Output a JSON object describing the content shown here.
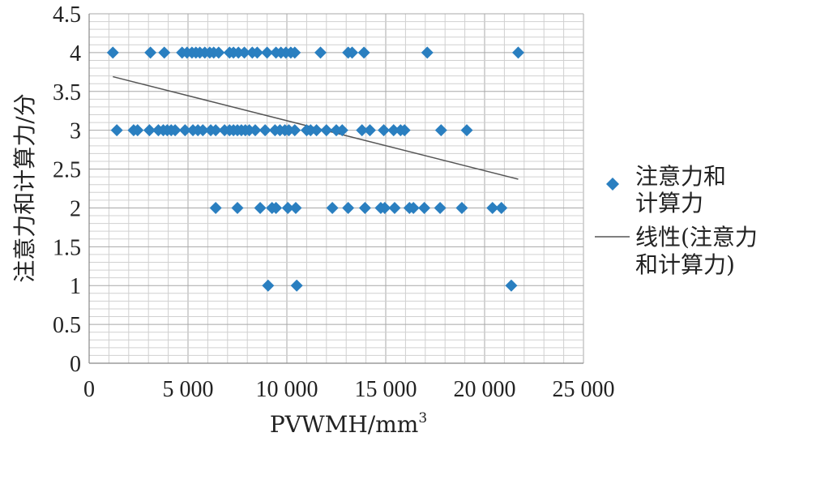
{
  "chart_data": {
    "type": "scatter",
    "xlabel": "PVWMH/mm",
    "xlabel_sup": "3",
    "ylabel": "注意力和计算力/分",
    "xlim": [
      0,
      25000
    ],
    "ylim": [
      0,
      4.5
    ],
    "x_ticks": [
      0,
      5000,
      10000,
      15000,
      20000,
      25000
    ],
    "x_tick_labels": [
      "0",
      "5 000",
      "10 000",
      "15 000",
      "20 000",
      "25 000"
    ],
    "y_ticks": [
      0,
      0.5,
      1,
      1.5,
      2,
      2.5,
      3,
      3.5,
      4,
      4.5
    ],
    "y_tick_labels": [
      "0",
      "0.5",
      "1",
      "1.5",
      "2",
      "2.5",
      "3",
      "3.5",
      "4",
      "4.5"
    ],
    "grid": true,
    "legend_position": "right",
    "series": [
      {
        "name": "注意力和计算力",
        "legend_lines": [
          "注意力和",
          "计算力"
        ],
        "marker": "diamond",
        "color": "#2a7fc0",
        "points": [
          [
            1200,
            4
          ],
          [
            3100,
            4
          ],
          [
            3800,
            4
          ],
          [
            4700,
            4
          ],
          [
            4950,
            4
          ],
          [
            5200,
            4
          ],
          [
            5400,
            4
          ],
          [
            5600,
            4
          ],
          [
            5850,
            4
          ],
          [
            6100,
            4
          ],
          [
            6300,
            4
          ],
          [
            6550,
            4
          ],
          [
            7100,
            4
          ],
          [
            7300,
            4
          ],
          [
            7550,
            4
          ],
          [
            7850,
            4
          ],
          [
            8250,
            4
          ],
          [
            8500,
            4
          ],
          [
            9000,
            4
          ],
          [
            9450,
            4
          ],
          [
            9700,
            4
          ],
          [
            9950,
            4
          ],
          [
            10200,
            4
          ],
          [
            10400,
            4
          ],
          [
            11700,
            4
          ],
          [
            13100,
            4
          ],
          [
            13300,
            4
          ],
          [
            13900,
            4
          ],
          [
            17100,
            4
          ],
          [
            21700,
            4
          ],
          [
            1400,
            3
          ],
          [
            2250,
            3
          ],
          [
            2450,
            3
          ],
          [
            3050,
            3
          ],
          [
            3500,
            3
          ],
          [
            3750,
            3
          ],
          [
            3950,
            3
          ],
          [
            4150,
            3
          ],
          [
            4350,
            3
          ],
          [
            4850,
            3
          ],
          [
            5250,
            3
          ],
          [
            5500,
            3
          ],
          [
            5750,
            3
          ],
          [
            6150,
            3
          ],
          [
            6400,
            3
          ],
          [
            6850,
            3
          ],
          [
            7100,
            3
          ],
          [
            7300,
            3
          ],
          [
            7500,
            3
          ],
          [
            7700,
            3
          ],
          [
            7900,
            3
          ],
          [
            8100,
            3
          ],
          [
            8400,
            3
          ],
          [
            8900,
            3
          ],
          [
            9400,
            3
          ],
          [
            9650,
            3
          ],
          [
            9900,
            3
          ],
          [
            10100,
            3
          ],
          [
            10400,
            3
          ],
          [
            11000,
            3
          ],
          [
            11200,
            3
          ],
          [
            11500,
            3
          ],
          [
            12000,
            3
          ],
          [
            12500,
            3
          ],
          [
            12800,
            3
          ],
          [
            13800,
            3
          ],
          [
            14200,
            3
          ],
          [
            14900,
            3
          ],
          [
            15400,
            3
          ],
          [
            15750,
            3
          ],
          [
            15950,
            3
          ],
          [
            17800,
            3
          ],
          [
            19100,
            3
          ],
          [
            6400,
            2
          ],
          [
            7500,
            2
          ],
          [
            8650,
            2
          ],
          [
            9250,
            2
          ],
          [
            9450,
            2
          ],
          [
            10050,
            2
          ],
          [
            10450,
            2
          ],
          [
            12300,
            2
          ],
          [
            13100,
            2
          ],
          [
            13950,
            2
          ],
          [
            14750,
            2
          ],
          [
            14950,
            2
          ],
          [
            15450,
            2
          ],
          [
            16200,
            2
          ],
          [
            16400,
            2
          ],
          [
            16950,
            2
          ],
          [
            17750,
            2
          ],
          [
            18850,
            2
          ],
          [
            20400,
            2
          ],
          [
            20850,
            2
          ],
          [
            9050,
            1
          ],
          [
            10500,
            1
          ],
          [
            21350,
            1
          ]
        ]
      },
      {
        "name": "线性(注意力和计算力)",
        "legend_lines": [
          "线性(注意力",
          "和计算力)"
        ],
        "type": "line",
        "color": "#555555",
        "points": [
          [
            1200,
            3.69
          ],
          [
            21700,
            2.37
          ]
        ]
      }
    ]
  }
}
